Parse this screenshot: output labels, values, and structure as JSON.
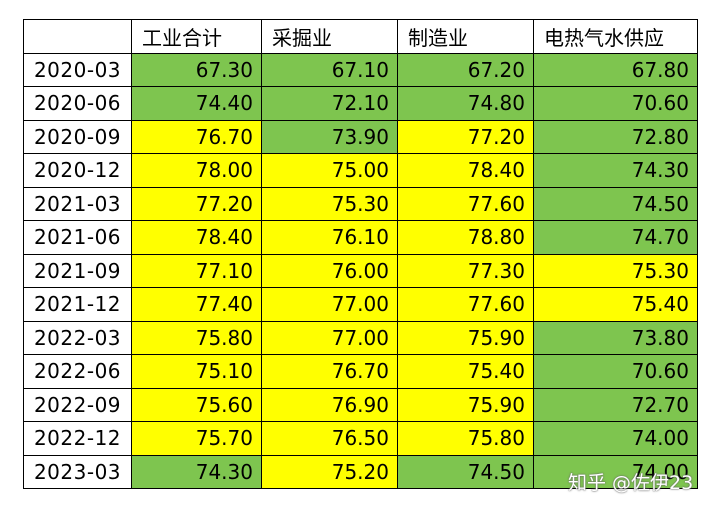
{
  "table": {
    "headers": [
      "",
      "工业合计",
      "采掘业",
      "制造业",
      "电热气水供应"
    ],
    "rows": [
      {
        "date": "2020-03",
        "cells": [
          {
            "v": "67.30",
            "c": "green"
          },
          {
            "v": "67.10",
            "c": "green"
          },
          {
            "v": "67.20",
            "c": "green"
          },
          {
            "v": "67.80",
            "c": "green"
          }
        ]
      },
      {
        "date": "2020-06",
        "cells": [
          {
            "v": "74.40",
            "c": "green"
          },
          {
            "v": "72.10",
            "c": "green"
          },
          {
            "v": "74.80",
            "c": "green"
          },
          {
            "v": "70.60",
            "c": "green"
          }
        ]
      },
      {
        "date": "2020-09",
        "cells": [
          {
            "v": "76.70",
            "c": "yellow"
          },
          {
            "v": "73.90",
            "c": "green"
          },
          {
            "v": "77.20",
            "c": "yellow"
          },
          {
            "v": "72.80",
            "c": "green"
          }
        ]
      },
      {
        "date": "2020-12",
        "cells": [
          {
            "v": "78.00",
            "c": "yellow"
          },
          {
            "v": "75.00",
            "c": "yellow"
          },
          {
            "v": "78.40",
            "c": "yellow"
          },
          {
            "v": "74.30",
            "c": "green"
          }
        ]
      },
      {
        "date": "2021-03",
        "cells": [
          {
            "v": "77.20",
            "c": "yellow"
          },
          {
            "v": "75.30",
            "c": "yellow"
          },
          {
            "v": "77.60",
            "c": "yellow"
          },
          {
            "v": "74.50",
            "c": "green"
          }
        ]
      },
      {
        "date": "2021-06",
        "cells": [
          {
            "v": "78.40",
            "c": "yellow"
          },
          {
            "v": "76.10",
            "c": "yellow"
          },
          {
            "v": "78.80",
            "c": "yellow"
          },
          {
            "v": "74.70",
            "c": "green"
          }
        ]
      },
      {
        "date": "2021-09",
        "cells": [
          {
            "v": "77.10",
            "c": "yellow"
          },
          {
            "v": "76.00",
            "c": "yellow"
          },
          {
            "v": "77.30",
            "c": "yellow"
          },
          {
            "v": "75.30",
            "c": "yellow"
          }
        ]
      },
      {
        "date": "2021-12",
        "cells": [
          {
            "v": "77.40",
            "c": "yellow"
          },
          {
            "v": "77.00",
            "c": "yellow"
          },
          {
            "v": "77.60",
            "c": "yellow"
          },
          {
            "v": "75.40",
            "c": "yellow"
          }
        ]
      },
      {
        "date": "2022-03",
        "cells": [
          {
            "v": "75.80",
            "c": "yellow"
          },
          {
            "v": "77.00",
            "c": "yellow"
          },
          {
            "v": "75.90",
            "c": "yellow"
          },
          {
            "v": "73.80",
            "c": "green"
          }
        ]
      },
      {
        "date": "2022-06",
        "cells": [
          {
            "v": "75.10",
            "c": "yellow"
          },
          {
            "v": "76.70",
            "c": "yellow"
          },
          {
            "v": "75.40",
            "c": "yellow"
          },
          {
            "v": "70.60",
            "c": "green"
          }
        ]
      },
      {
        "date": "2022-09",
        "cells": [
          {
            "v": "75.60",
            "c": "yellow"
          },
          {
            "v": "76.90",
            "c": "yellow"
          },
          {
            "v": "75.90",
            "c": "yellow"
          },
          {
            "v": "72.70",
            "c": "green"
          }
        ]
      },
      {
        "date": "2022-12",
        "cells": [
          {
            "v": "75.70",
            "c": "yellow"
          },
          {
            "v": "76.50",
            "c": "yellow"
          },
          {
            "v": "75.80",
            "c": "yellow"
          },
          {
            "v": "74.00",
            "c": "green"
          }
        ]
      },
      {
        "date": "2023-03",
        "cells": [
          {
            "v": "74.30",
            "c": "green"
          },
          {
            "v": "75.20",
            "c": "yellow"
          },
          {
            "v": "74.50",
            "c": "green"
          },
          {
            "v": "74.00",
            "c": "green"
          }
        ]
      }
    ]
  },
  "colors": {
    "green": "#7ec54f",
    "yellow": "#ffff00"
  },
  "watermark": "知乎 @佐伊23"
}
